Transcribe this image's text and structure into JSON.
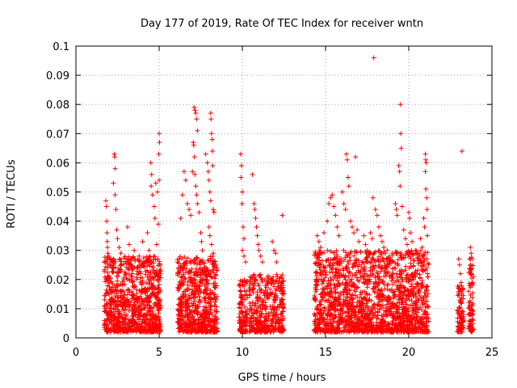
{
  "chart_data": {
    "type": "scatter",
    "title": "Day 177 of 2019, Rate Of TEC Index for receiver wntn",
    "xlabel": "GPS time / hours",
    "ylabel": "ROTI / TECUs",
    "xlim": [
      0,
      25
    ],
    "ylim": [
      0,
      0.1
    ],
    "x_ticks": [
      0,
      5,
      10,
      15,
      20,
      25
    ],
    "x_tick_labels": [
      "0",
      "5",
      "10",
      "15",
      "20",
      "25"
    ],
    "y_ticks": [
      0,
      0.01,
      0.02,
      0.03,
      0.04,
      0.05,
      0.06,
      0.07,
      0.08,
      0.09,
      0.1
    ],
    "y_tick_labels": [
      "0",
      "0.01",
      "0.02",
      "0.03",
      "0.04",
      "0.05",
      "0.06",
      "0.07",
      "0.08",
      "0.09",
      "0.1"
    ],
    "grid": true,
    "marker": "+",
    "color": "#ff0000",
    "series": [
      {
        "points": [
          [
            1.8,
            0.047
          ],
          [
            1.83,
            0.045
          ],
          [
            1.85,
            0.04
          ],
          [
            1.87,
            0.036
          ],
          [
            1.88,
            0.033
          ],
          [
            1.9,
            0.031
          ],
          [
            1.92,
            0.029
          ],
          [
            1.95,
            0.028
          ],
          [
            2.3,
            0.063
          ],
          [
            2.33,
            0.062
          ],
          [
            2.36,
            0.058
          ],
          [
            2.25,
            0.053
          ],
          [
            2.35,
            0.049
          ],
          [
            2.4,
            0.044
          ],
          [
            2.45,
            0.037
          ],
          [
            2.5,
            0.034
          ],
          [
            2.6,
            0.031
          ],
          [
            2.7,
            0.029
          ],
          [
            3.1,
            0.038
          ],
          [
            3.2,
            0.032
          ],
          [
            3.5,
            0.03
          ],
          [
            3.8,
            0.028
          ],
          [
            4.0,
            0.033
          ],
          [
            4.3,
            0.036
          ],
          [
            4.5,
            0.06
          ],
          [
            4.55,
            0.056
          ],
          [
            4.52,
            0.052
          ],
          [
            4.6,
            0.049
          ],
          [
            4.8,
            0.053
          ],
          [
            4.9,
            0.05
          ],
          [
            4.7,
            0.045
          ],
          [
            4.75,
            0.041
          ],
          [
            4.95,
            0.039
          ],
          [
            5.0,
            0.07
          ],
          [
            5.02,
            0.067
          ],
          [
            4.98,
            0.063
          ],
          [
            5.0,
            0.054
          ],
          [
            4.85,
            0.032
          ],
          [
            4.4,
            0.03
          ],
          [
            6.3,
            0.041
          ],
          [
            6.4,
            0.049
          ],
          [
            6.5,
            0.057
          ],
          [
            6.6,
            0.054
          ],
          [
            6.7,
            0.046
          ],
          [
            6.8,
            0.044
          ],
          [
            6.9,
            0.042
          ],
          [
            7.0,
            0.057
          ],
          [
            7.1,
            0.079
          ],
          [
            7.15,
            0.078
          ],
          [
            7.2,
            0.077
          ],
          [
            7.25,
            0.075
          ],
          [
            7.3,
            0.071
          ],
          [
            7.05,
            0.067
          ],
          [
            7.08,
            0.066
          ],
          [
            7.12,
            0.062
          ],
          [
            7.15,
            0.056
          ],
          [
            7.2,
            0.052
          ],
          [
            7.25,
            0.049
          ],
          [
            7.3,
            0.046
          ],
          [
            7.4,
            0.043
          ],
          [
            7.5,
            0.036
          ],
          [
            7.55,
            0.033
          ],
          [
            7.6,
            0.03
          ],
          [
            7.8,
            0.063
          ],
          [
            7.9,
            0.06
          ],
          [
            7.95,
            0.057
          ],
          [
            8.0,
            0.054
          ],
          [
            8.05,
            0.05
          ],
          [
            8.1,
            0.047
          ],
          [
            8.1,
            0.077
          ],
          [
            8.12,
            0.075
          ],
          [
            8.15,
            0.07
          ],
          [
            8.18,
            0.068
          ],
          [
            8.2,
            0.064
          ],
          [
            8.22,
            0.059
          ],
          [
            8.25,
            0.044
          ],
          [
            8.3,
            0.043
          ],
          [
            8.0,
            0.038
          ],
          [
            8.05,
            0.035
          ],
          [
            8.15,
            0.032
          ],
          [
            8.25,
            0.029
          ],
          [
            9.9,
            0.063
          ],
          [
            9.95,
            0.059
          ],
          [
            9.92,
            0.055
          ],
          [
            10.0,
            0.05
          ],
          [
            9.98,
            0.046
          ],
          [
            10.05,
            0.038
          ],
          [
            10.1,
            0.034
          ],
          [
            10.0,
            0.03
          ],
          [
            10.1,
            0.028
          ],
          [
            10.2,
            0.026
          ],
          [
            10.6,
            0.056
          ],
          [
            10.7,
            0.046
          ],
          [
            10.75,
            0.044
          ],
          [
            10.8,
            0.041
          ],
          [
            10.85,
            0.038
          ],
          [
            10.9,
            0.035
          ],
          [
            10.95,
            0.032
          ],
          [
            11.0,
            0.03
          ],
          [
            11.1,
            0.028
          ],
          [
            11.2,
            0.026
          ],
          [
            11.8,
            0.033
          ],
          [
            11.9,
            0.03
          ],
          [
            12.0,
            0.029
          ],
          [
            12.05,
            0.026
          ],
          [
            12.3,
            0.021
          ],
          [
            12.4,
            0.042
          ],
          [
            12.45,
            0.018
          ],
          [
            12.5,
            0.015
          ],
          [
            14.5,
            0.035
          ],
          [
            14.6,
            0.033
          ],
          [
            14.7,
            0.031
          ],
          [
            14.8,
            0.029
          ],
          [
            14.9,
            0.036
          ],
          [
            15.1,
            0.04
          ],
          [
            15.2,
            0.046
          ],
          [
            15.3,
            0.048
          ],
          [
            15.4,
            0.049
          ],
          [
            15.5,
            0.045
          ],
          [
            15.6,
            0.042
          ],
          [
            15.7,
            0.038
          ],
          [
            15.8,
            0.035
          ],
          [
            16.0,
            0.05
          ],
          [
            16.1,
            0.046
          ],
          [
            16.2,
            0.044
          ],
          [
            16.25,
            0.063
          ],
          [
            16.3,
            0.061
          ],
          [
            16.35,
            0.055
          ],
          [
            16.4,
            0.052
          ],
          [
            16.5,
            0.04
          ],
          [
            16.6,
            0.038
          ],
          [
            16.7,
            0.036
          ],
          [
            16.8,
            0.062
          ],
          [
            16.9,
            0.037
          ],
          [
            17.0,
            0.033
          ],
          [
            17.3,
            0.035
          ],
          [
            17.4,
            0.032
          ],
          [
            17.5,
            0.03
          ],
          [
            17.7,
            0.036
          ],
          [
            17.8,
            0.034
          ],
          [
            17.9,
            0.096
          ],
          [
            17.85,
            0.048
          ],
          [
            18.0,
            0.044
          ],
          [
            18.1,
            0.042
          ],
          [
            18.2,
            0.038
          ],
          [
            18.3,
            0.035
          ],
          [
            18.4,
            0.033
          ],
          [
            18.5,
            0.031
          ],
          [
            18.7,
            0.03
          ],
          [
            19.0,
            0.029
          ],
          [
            19.2,
            0.046
          ],
          [
            19.25,
            0.044
          ],
          [
            19.3,
            0.042
          ],
          [
            19.4,
            0.059
          ],
          [
            19.45,
            0.057
          ],
          [
            19.5,
            0.08
          ],
          [
            19.52,
            0.07
          ],
          [
            19.55,
            0.065
          ],
          [
            19.48,
            0.052
          ],
          [
            19.6,
            0.045
          ],
          [
            19.7,
            0.037
          ],
          [
            19.8,
            0.034
          ],
          [
            19.9,
            0.032
          ],
          [
            20.0,
            0.043
          ],
          [
            20.05,
            0.041
          ],
          [
            20.1,
            0.036
          ],
          [
            20.2,
            0.033
          ],
          [
            20.4,
            0.03
          ],
          [
            20.7,
            0.034
          ],
          [
            20.8,
            0.031
          ],
          [
            20.85,
            0.028
          ],
          [
            20.9,
            0.041
          ],
          [
            20.95,
            0.038
          ],
          [
            21.0,
            0.063
          ],
          [
            21.02,
            0.061
          ],
          [
            21.05,
            0.06
          ],
          [
            21.0,
            0.057
          ],
          [
            21.03,
            0.051
          ],
          [
            21.08,
            0.048
          ],
          [
            21.1,
            0.044
          ],
          [
            21.12,
            0.035
          ],
          [
            23.0,
            0.027
          ],
          [
            23.05,
            0.025
          ],
          [
            23.1,
            0.022
          ],
          [
            23.2,
            0.064
          ],
          [
            23.15,
            0.019
          ],
          [
            23.25,
            0.017
          ],
          [
            23.7,
            0.031
          ],
          [
            23.75,
            0.029
          ],
          [
            23.8,
            0.027
          ],
          [
            23.72,
            0.025
          ],
          [
            23.78,
            0.022
          ],
          [
            23.82,
            0.019
          ],
          [
            23.75,
            0.01
          ],
          [
            23.8,
            0.008
          ],
          [
            23.85,
            0.006
          ],
          [
            23.7,
            0.004
          ]
        ],
        "dense_bands": [
          {
            "x_range": [
              1.7,
              5.1
            ],
            "y_range": [
              0.002,
              0.028
            ],
            "count": 900
          },
          {
            "x_range": [
              6.1,
              8.5
            ],
            "y_range": [
              0.002,
              0.028
            ],
            "count": 650
          },
          {
            "x_range": [
              9.8,
              10.3
            ],
            "y_range": [
              0.002,
              0.02
            ],
            "count": 120
          },
          {
            "x_range": [
              10.4,
              12.5
            ],
            "y_range": [
              0.002,
              0.022
            ],
            "count": 400
          },
          {
            "x_range": [
              14.3,
              21.2
            ],
            "y_range": [
              0.002,
              0.03
            ],
            "count": 1700
          },
          {
            "x_range": [
              22.9,
              23.3
            ],
            "y_range": [
              0.002,
              0.018
            ],
            "count": 90
          },
          {
            "x_range": [
              23.6,
              23.9
            ],
            "y_range": [
              0.002,
              0.028
            ],
            "count": 80
          }
        ]
      }
    ]
  }
}
